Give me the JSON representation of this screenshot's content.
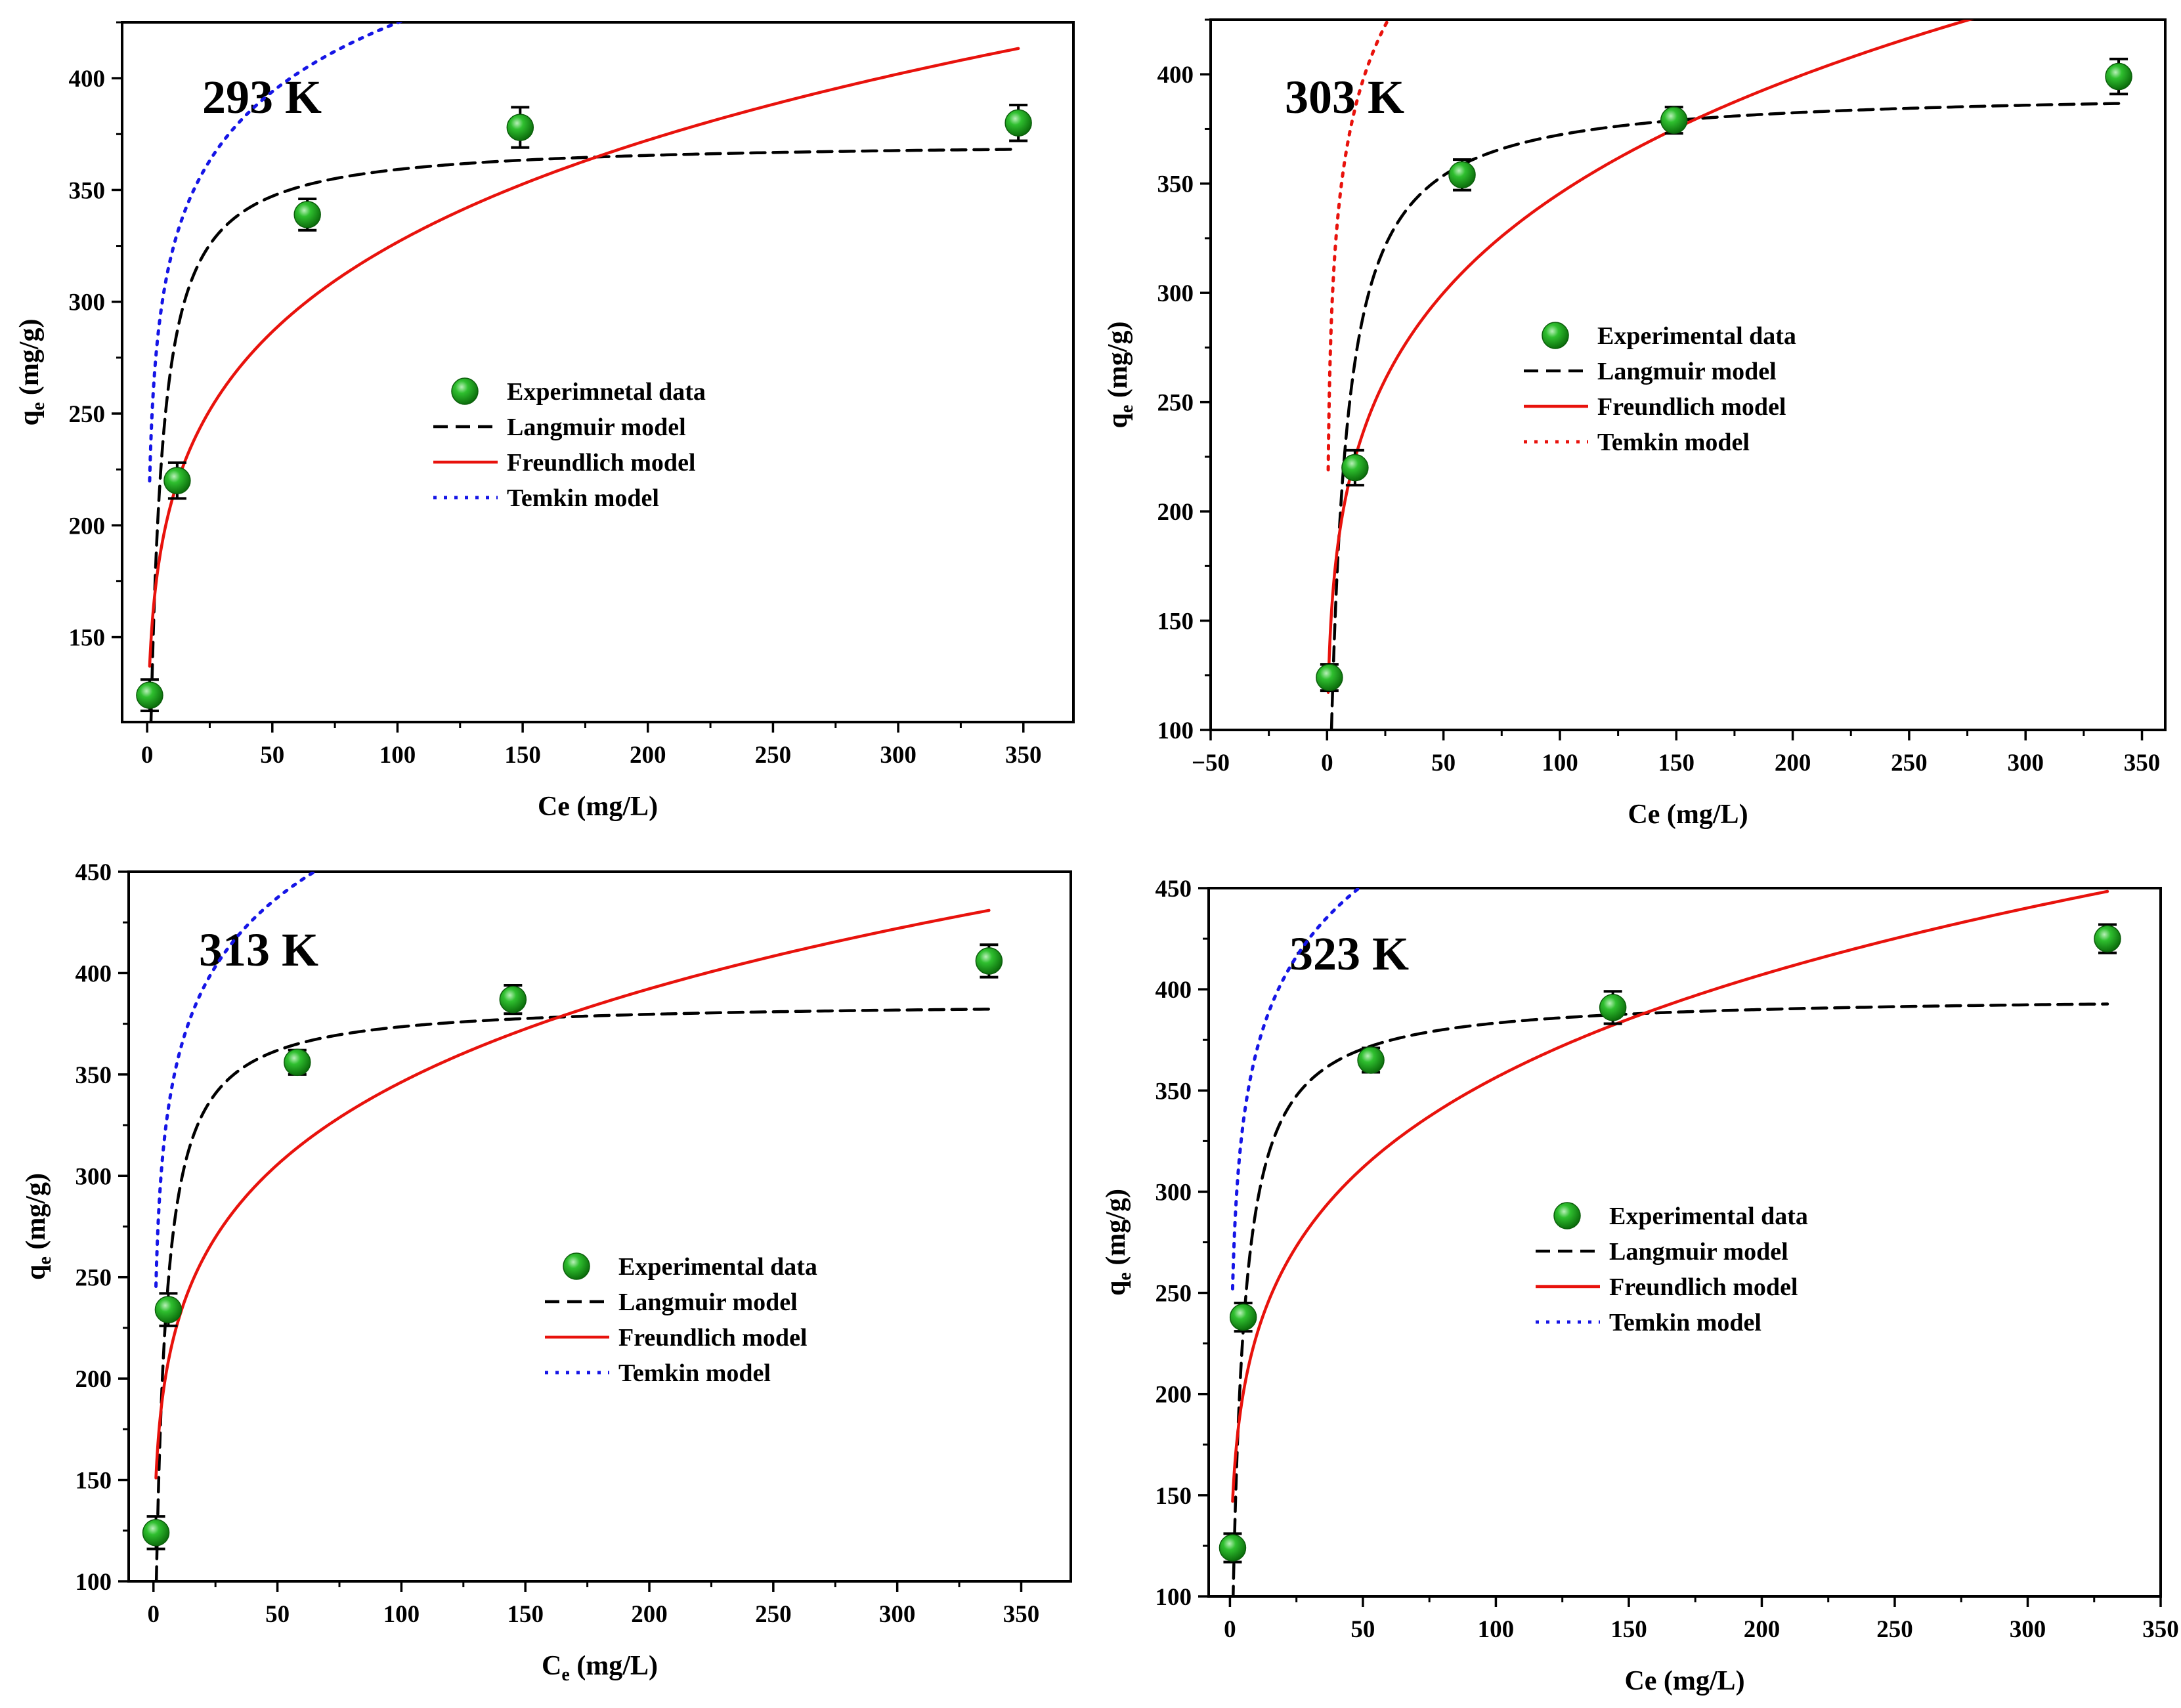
{
  "figure": {
    "layout": "2x2 panel grid"
  },
  "chart_data": [
    {
      "type": "scatter",
      "panel_label": "293 K",
      "xlabel": "Ce (mg/L)",
      "xlabel_sub": "",
      "xlabel_tail": "",
      "ylabel_main": "q",
      "ylabel_sub": "e",
      "ylabel_tail": " (mg/g)",
      "xlim": [
        -10,
        370
      ],
      "ylim": [
        112,
        425
      ],
      "xticks": [
        0,
        50,
        100,
        150,
        200,
        250,
        300,
        350
      ],
      "yticks": [
        150,
        200,
        250,
        300,
        350,
        400
      ],
      "legend_position": "center",
      "legend": {
        "experimental": "Experimnetal data",
        "langmuir": "Langmuir model",
        "freundlich": "Freundlich model",
        "temkin": "Temkin model"
      },
      "experimental": {
        "x": [
          1,
          12,
          64,
          149,
          348
        ],
        "y": [
          124,
          220,
          339,
          378,
          380
        ],
        "err": [
          7,
          8,
          7,
          9,
          8
        ]
      },
      "models": {
        "langmuir": {
          "qmax": 372,
          "KL": 0.28,
          "xmin": 1,
          "xmax": 348
        },
        "freundlich": {
          "KF": 137,
          "n": 5.3,
          "xmin": 1,
          "xmax": 348
        },
        "temkin": {
          "A": 140,
          "B": 44.5,
          "xmin": 1,
          "xmax": 348
        }
      }
    },
    {
      "type": "scatter",
      "panel_label": "303 K",
      "xlabel": "Ce (mg/L)",
      "xlabel_sub": "",
      "xlabel_tail": "",
      "ylabel_main": "q",
      "ylabel_sub": "e",
      "ylabel_tail": " (mg/g)",
      "xlim": [
        -50,
        360
      ],
      "ylim": [
        100,
        425
      ],
      "xticks": [
        -50,
        0,
        50,
        100,
        150,
        200,
        250,
        300,
        350
      ],
      "yticks": [
        100,
        150,
        200,
        250,
        300,
        350,
        400
      ],
      "legend_position": "center",
      "legend": {
        "experimental": "Experimental data",
        "langmuir": "Langmuir model",
        "freundlich": "Freundlich model",
        "temkin": "Temkin model"
      },
      "experimental": {
        "x": [
          1,
          12,
          58,
          149,
          340
        ],
        "y": [
          124,
          220,
          354,
          379,
          399
        ],
        "err": [
          6,
          8,
          7,
          6,
          8
        ]
      },
      "models": {
        "langmuir": {
          "qmax": 393,
          "KL": 0.18,
          "xmin": 1,
          "xmax": 340
        },
        "freundlich": {
          "KF": 135,
          "n": 4.9,
          "xmin": 0.5,
          "xmax": 340
        },
        "temkin": {
          "A": 135,
          "B": 52,
          "xmin": 0.5,
          "xmax": 340
        }
      }
    },
    {
      "type": "scatter",
      "panel_label": "313 K",
      "xlabel": "C",
      "xlabel_sub": "e",
      "xlabel_tail": " (mg/L)",
      "ylabel_main": "q",
      "ylabel_sub": "e",
      "ylabel_tail": " (mg/g)",
      "xlim": [
        -10,
        370
      ],
      "ylim": [
        100,
        450
      ],
      "xticks": [
        0,
        50,
        100,
        150,
        200,
        250,
        300,
        350
      ],
      "yticks": [
        100,
        150,
        200,
        250,
        300,
        350,
        400,
        450
      ],
      "legend_position": "lower-right",
      "legend": {
        "experimental": "Experimental data",
        "langmuir": "Langmuir model",
        "freundlich": "Freundlich model",
        "temkin": "Temkin model"
      },
      "experimental": {
        "x": [
          1,
          6,
          58,
          145,
          337
        ],
        "y": [
          124,
          234,
          356,
          387,
          406
        ],
        "err": [
          8,
          8,
          6,
          7,
          8
        ]
      },
      "models": {
        "langmuir": {
          "qmax": 386,
          "KL": 0.3,
          "xmin": 1,
          "xmax": 337
        },
        "freundlich": {
          "KF": 151,
          "n": 5.55,
          "xmin": 1,
          "xmax": 337
        },
        "temkin": {
          "A": 150,
          "B": 49,
          "xmin": 1,
          "xmax": 337
        }
      }
    },
    {
      "type": "scatter",
      "panel_label": "323 K",
      "xlabel": "Ce (mg/L)",
      "xlabel_sub": "",
      "xlabel_tail": "",
      "ylabel_main": "q",
      "ylabel_sub": "e",
      "ylabel_tail": " (mg/g)",
      "xlim": [
        -8,
        350
      ],
      "ylim": [
        100,
        450
      ],
      "xticks": [
        0,
        50,
        100,
        150,
        200,
        250,
        300,
        350
      ],
      "yticks": [
        100,
        150,
        200,
        250,
        300,
        350,
        400,
        450
      ],
      "legend_position": "center-left",
      "legend": {
        "experimental": "Experimental data",
        "langmuir": "Langmuir model",
        "freundlich": "Freundlich model",
        "temkin": "Temkin model"
      },
      "experimental": {
        "x": [
          1,
          5,
          53,
          144,
          330
        ],
        "y": [
          124,
          238,
          365,
          391,
          425
        ],
        "err": [
          7,
          7,
          6,
          8,
          7
        ]
      },
      "models": {
        "langmuir": {
          "qmax": 397,
          "KL": 0.28,
          "xmin": 1,
          "xmax": 330
        },
        "freundlich": {
          "KF": 147,
          "n": 5.2,
          "xmin": 1,
          "xmax": 330
        },
        "temkin": {
          "A": 140,
          "B": 51,
          "xmin": 1,
          "xmax": 330
        }
      }
    }
  ],
  "colors": {
    "experimental_fill": "#1a9e1a",
    "experimental_highlight": "#b9f0b9",
    "langmuir": "#000000",
    "freundlich": "#e8120c",
    "temkin_blue": "#1515e6",
    "temkin_red": "#e8120c",
    "axis": "#000000"
  }
}
